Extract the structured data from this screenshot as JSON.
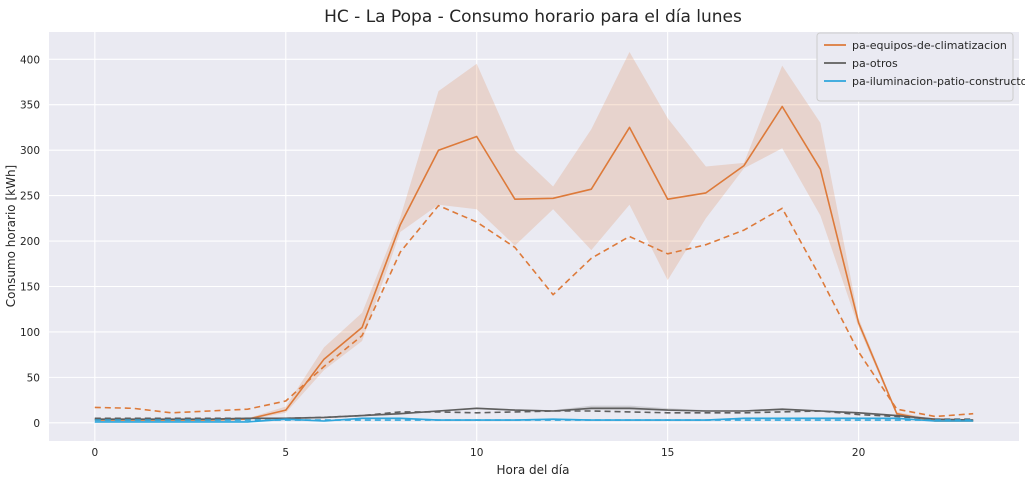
{
  "chart_data": {
    "type": "line",
    "title": "HC - La Popa - Consumo horario para el día lunes",
    "xlabel": "Hora del día",
    "ylabel": "Consumo horario [kWh]",
    "xlim": [
      -1.2,
      24.2
    ],
    "ylim": [
      -20,
      430
    ],
    "xticks": [
      0,
      5,
      10,
      15,
      20
    ],
    "yticks": [
      0,
      50,
      100,
      150,
      200,
      250,
      300,
      350,
      400
    ],
    "grid": true,
    "legend_position": "top-right",
    "x": [
      0,
      1,
      2,
      3,
      4,
      5,
      6,
      7,
      8,
      9,
      10,
      11,
      12,
      13,
      14,
      15,
      16,
      17,
      18,
      19,
      20,
      21,
      22,
      23
    ],
    "series": [
      {
        "name": "pa-equipos-de-climatizacion",
        "color": "#dd7a3a",
        "legend": true,
        "style": "solid",
        "values": [
          3,
          3,
          3,
          3,
          4,
          14,
          70,
          105,
          218,
          300,
          315,
          246,
          247,
          257,
          325,
          246,
          253,
          283,
          348,
          279,
          110,
          10,
          2,
          2
        ],
        "band_low": [
          3,
          3,
          3,
          3,
          3,
          11,
          58,
          90,
          210,
          240,
          235,
          195,
          235,
          190,
          240,
          157,
          225,
          280,
          302,
          228,
          105,
          8,
          1,
          1
        ],
        "band_high": [
          4,
          4,
          4,
          4,
          5,
          18,
          83,
          121,
          226,
          365,
          395,
          300,
          260,
          323,
          408,
          335,
          282,
          286,
          393,
          330,
          115,
          12,
          4,
          4
        ]
      },
      {
        "name": "",
        "color": "#dd7a3a",
        "legend": false,
        "style": "dashed",
        "values": [
          17,
          16,
          11,
          13,
          15,
          24,
          62,
          96,
          188,
          239,
          221,
          193,
          141,
          181,
          205,
          186,
          196,
          212,
          236,
          160,
          78,
          15,
          7,
          10
        ]
      },
      {
        "name": "pa-otros",
        "color": "#5e5e5e",
        "legend": true,
        "style": "solid",
        "values": [
          4,
          4,
          4,
          4,
          5,
          5,
          6,
          8,
          10,
          13,
          16,
          14,
          13,
          16,
          16,
          14,
          13,
          13,
          15,
          13,
          11,
          8,
          4,
          3
        ],
        "band_low": [
          3,
          3,
          3,
          3,
          4,
          4,
          5,
          7,
          9,
          12,
          15,
          13,
          12,
          14,
          14,
          13,
          12,
          12,
          13,
          12,
          10,
          7,
          3,
          2
        ],
        "band_high": [
          5,
          5,
          5,
          5,
          6,
          6,
          7,
          9,
          11,
          14,
          17,
          15,
          14,
          19,
          19,
          16,
          14,
          14,
          16,
          14,
          12,
          9,
          5,
          4
        ]
      },
      {
        "name": "",
        "color": "#5e5e5e",
        "legend": false,
        "style": "dashed",
        "values": [
          5,
          5,
          5,
          5,
          5,
          5,
          6,
          8,
          12,
          12,
          11,
          12,
          13,
          13,
          12,
          11,
          11,
          11,
          12,
          13,
          9,
          7,
          4,
          4
        ]
      },
      {
        "name": "pa-iluminacion-patio-constructor",
        "color": "#2fa6dc",
        "legend": true,
        "style": "solid",
        "values": [
          1,
          1,
          1,
          1,
          1,
          4,
          2,
          5,
          5,
          3,
          3,
          3,
          4,
          3,
          3,
          3,
          3,
          5,
          5,
          5,
          5,
          5,
          2,
          2
        ],
        "band_low": [
          0,
          0,
          0,
          0,
          0,
          3,
          1,
          4,
          4,
          2,
          2,
          2,
          3,
          2,
          2,
          2,
          2,
          4,
          4,
          4,
          4,
          4,
          1,
          1
        ],
        "band_high": [
          2,
          2,
          2,
          2,
          2,
          5,
          3,
          6,
          6,
          4,
          4,
          4,
          5,
          4,
          4,
          4,
          4,
          6,
          6,
          6,
          6,
          6,
          3,
          3
        ]
      },
      {
        "name": "",
        "color": "#2fa6dc",
        "legend": false,
        "style": "dashed",
        "values": [
          3,
          3,
          3,
          3,
          3,
          3,
          3,
          3,
          3,
          3,
          3,
          3,
          3,
          3,
          3,
          3,
          3,
          3,
          3,
          3,
          3,
          3,
          3,
          3
        ]
      }
    ]
  }
}
